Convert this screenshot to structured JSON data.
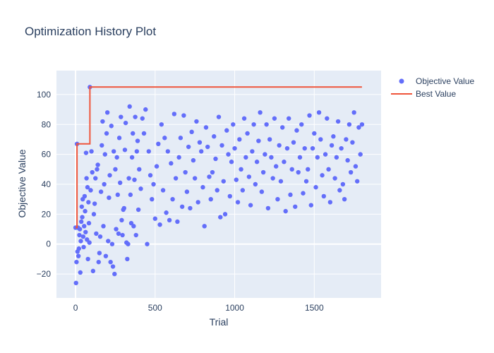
{
  "chart_data": {
    "type": "scatter",
    "title": "Optimization History Plot",
    "xlabel": "Trial",
    "ylabel": "Objective Value",
    "xlim": [
      -120,
      1920
    ],
    "ylim": [
      -36,
      116
    ],
    "xticks": [
      0,
      500,
      1000,
      1500
    ],
    "yticks": [
      -20,
      0,
      20,
      40,
      60,
      80,
      100
    ],
    "grid": true,
    "legend_position": "top-right",
    "colors": {
      "objective": "#636efa",
      "best": "#ef553b",
      "plot_bg": "#e5ecf6",
      "grid": "#ffffff"
    },
    "series": [
      {
        "name": "Objective Value",
        "mode": "markers",
        "x": [
          0,
          3,
          6,
          9,
          12,
          15,
          18,
          21,
          24,
          27,
          30,
          33,
          36,
          39,
          42,
          45,
          48,
          51,
          54,
          57,
          60,
          63,
          66,
          69,
          72,
          75,
          78,
          81,
          84,
          87,
          90,
          95,
          100,
          105,
          110,
          115,
          120,
          125,
          130,
          135,
          140,
          145,
          150,
          155,
          160,
          165,
          170,
          175,
          180,
          185,
          190,
          195,
          200,
          205,
          210,
          215,
          220,
          225,
          230,
          235,
          240,
          245,
          250,
          255,
          260,
          265,
          270,
          275,
          280,
          285,
          290,
          295,
          300,
          305,
          310,
          315,
          320,
          325,
          330,
          335,
          340,
          345,
          350,
          355,
          360,
          365,
          370,
          375,
          380,
          385,
          390,
          395,
          400,
          410,
          420,
          430,
          440,
          450,
          460,
          470,
          480,
          490,
          500,
          510,
          520,
          530,
          540,
          550,
          560,
          570,
          580,
          590,
          600,
          610,
          620,
          630,
          640,
          650,
          660,
          670,
          680,
          690,
          700,
          710,
          720,
          730,
          740,
          750,
          760,
          770,
          780,
          790,
          800,
          810,
          820,
          830,
          840,
          850,
          860,
          870,
          880,
          890,
          900,
          910,
          920,
          930,
          940,
          950,
          960,
          970,
          980,
          990,
          1000,
          1010,
          1020,
          1030,
          1040,
          1050,
          1060,
          1070,
          1080,
          1090,
          1100,
          1110,
          1120,
          1130,
          1140,
          1150,
          1160,
          1170,
          1180,
          1190,
          1200,
          1210,
          1220,
          1230,
          1240,
          1250,
          1260,
          1270,
          1280,
          1290,
          1300,
          1310,
          1320,
          1330,
          1340,
          1350,
          1360,
          1370,
          1380,
          1390,
          1400,
          1410,
          1420,
          1430,
          1440,
          1450,
          1460,
          1470,
          1480,
          1490,
          1500,
          1510,
          1520,
          1530,
          1540,
          1550,
          1560,
          1570,
          1580,
          1590,
          1600,
          1610,
          1620,
          1630,
          1640,
          1650,
          1660,
          1670,
          1680,
          1690,
          1700,
          1710,
          1720,
          1730,
          1740,
          1750,
          1760,
          1770,
          1780,
          1790,
          1800
        ],
        "y": [
          11,
          -26,
          -12,
          67,
          -5,
          11,
          -8,
          -3,
          6,
          10,
          -19,
          2,
          15,
          25,
          18,
          30,
          5,
          -2,
          12,
          32,
          22,
          8,
          61,
          44,
          3,
          38,
          -10,
          28,
          14,
          1,
          105,
          36,
          62,
          48,
          -18,
          20,
          27,
          44,
          7,
          50,
          53,
          -12,
          -6,
          5,
          35,
          66,
          82,
          12,
          40,
          60,
          -8,
          74,
          88,
          2,
          31,
          46,
          -12,
          79,
          0,
          -15,
          62,
          -20,
          50,
          10,
          58,
          33,
          7,
          71,
          41,
          85,
          16,
          6,
          23,
          24,
          63,
          81,
          1,
          -10,
          0,
          44,
          92,
          33,
          14,
          58,
          74,
          12,
          43,
          85,
          6,
          62,
          69,
          23,
          50,
          37,
          84,
          74,
          90,
          0,
          62,
          46,
          30,
          40,
          17,
          52,
          67,
          13,
          80,
          36,
          71,
          21,
          62,
          16,
          54,
          30,
          87,
          44,
          15,
          58,
          71,
          25,
          86,
          48,
          35,
          65,
          24,
          75,
          56,
          44,
          82,
          28,
          68,
          62,
          38,
          12,
          78,
          65,
          45,
          30,
          48,
          72,
          57,
          36,
          85,
          18,
          66,
          42,
          20,
          76,
          60,
          32,
          55,
          80,
          64,
          43,
          28,
          70,
          50,
          36,
          84,
          58,
          74,
          45,
          26,
          62,
          80,
          40,
          55,
          69,
          88,
          35,
          48,
          60,
          80,
          24,
          70,
          58,
          44,
          84,
          52,
          30,
          66,
          42,
          78,
          55,
          22,
          64,
          84,
          33,
          50,
          68,
          25,
          76,
          48,
          58,
          80,
          34,
          64,
          42,
          50,
          86,
          26,
          64,
          74,
          38,
          58,
          88,
          70,
          46,
          32,
          60,
          84,
          50,
          28,
          66,
          72,
          44,
          58,
          82,
          36,
          64,
          40,
          30,
          70,
          56,
          80,
          48,
          68,
          88,
          52,
          42,
          78,
          60,
          80
        ]
      },
      {
        "name": "Best Value",
        "mode": "line",
        "x": [
          0,
          9,
          9,
          90,
          90,
          1800
        ],
        "y": [
          11,
          11,
          67,
          67,
          105,
          105
        ]
      }
    ]
  }
}
